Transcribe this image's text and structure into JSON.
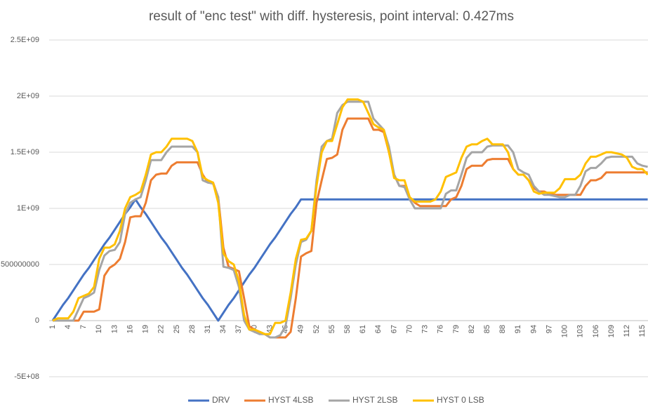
{
  "chart_data": {
    "type": "line",
    "title": "result of \"enc test\" with diff. hysteresis, point interval: 0.427ms",
    "categories": [
      "1",
      null,
      null,
      "4",
      null,
      null,
      "7",
      null,
      null,
      "10",
      null,
      null,
      "13",
      null,
      null,
      "16",
      null,
      null,
      "19",
      null,
      null,
      "22",
      null,
      null,
      "25",
      null,
      null,
      "28",
      null,
      null,
      "31",
      null,
      null,
      "34",
      null,
      null,
      "37",
      null,
      null,
      "40",
      null,
      null,
      "43",
      null,
      null,
      "46",
      null,
      null,
      "49",
      null,
      null,
      "52",
      null,
      null,
      "55",
      null,
      null,
      "58",
      null,
      null,
      "61",
      null,
      null,
      "64",
      null,
      null,
      "67",
      null,
      null,
      "70",
      null,
      null,
      "73",
      null,
      null,
      "76",
      null,
      null,
      "79",
      null,
      null,
      "82",
      null,
      null,
      "85",
      null,
      null,
      "88",
      null,
      null,
      "91",
      null,
      null,
      "94",
      null,
      null,
      "97",
      null,
      null,
      "100",
      null,
      null,
      "103",
      null,
      null,
      "106",
      null,
      null,
      "109",
      null,
      null,
      "112",
      null,
      null,
      "115",
      null
    ],
    "ylim": [
      -500000000.0,
      2500000000.0
    ],
    "yticks": [
      {
        "value": -500000000.0,
        "label": "-5E+08"
      },
      0,
      500000000,
      {
        "value": 1000000000.0,
        "label": "1E+09"
      },
      {
        "value": 1500000000.0,
        "label": "1.5E+09"
      },
      {
        "value": 2000000000.0,
        "label": "2E+09"
      },
      {
        "value": 2500000000.0,
        "label": "2.5E+09"
      }
    ],
    "grid": true,
    "legend": "bottom",
    "series": [
      {
        "name": "DRV",
        "color": "#4472c4",
        "values": [
          0,
          70000000.0,
          140000000.0,
          200000000.0,
          270000000.0,
          340000000.0,
          410000000.0,
          470000000.0,
          540000000.0,
          610000000.0,
          680000000.0,
          740000000.0,
          810000000.0,
          880000000.0,
          950000000.0,
          1010000000.0,
          1080000000.0,
          1010000000.0,
          950000000.0,
          880000000.0,
          810000000.0,
          740000000.0,
          680000000.0,
          610000000.0,
          540000000.0,
          470000000.0,
          410000000.0,
          340000000.0,
          270000000.0,
          200000000.0,
          140000000.0,
          70000000.0,
          0,
          70000000.0,
          140000000.0,
          200000000.0,
          270000000.0,
          340000000.0,
          410000000.0,
          470000000.0,
          540000000.0,
          610000000.0,
          680000000.0,
          740000000.0,
          810000000.0,
          880000000.0,
          950000000.0,
          1010000000.0,
          1080000000.0,
          1080000000.0,
          1080000000.0,
          1080000000.0,
          1080000000.0,
          1080000000.0,
          1080000000.0,
          1080000000.0,
          1080000000.0,
          1080000000.0,
          1080000000.0,
          1080000000.0,
          1080000000.0,
          1080000000.0,
          1080000000.0,
          1080000000.0,
          1080000000.0,
          1080000000.0,
          1080000000.0,
          1080000000.0,
          1080000000.0,
          1080000000.0,
          1080000000.0,
          1080000000.0,
          1080000000.0,
          1080000000.0,
          1080000000.0,
          1080000000.0,
          1080000000.0,
          1080000000.0,
          1080000000.0,
          1080000000.0,
          1080000000.0,
          1080000000.0,
          1080000000.0,
          1080000000.0,
          1080000000.0,
          1080000000.0,
          1080000000.0,
          1080000000.0,
          1080000000.0,
          1080000000.0,
          1080000000.0,
          1080000000.0,
          1080000000.0,
          1080000000.0,
          1080000000.0,
          1080000000.0,
          1080000000.0,
          1080000000.0,
          1080000000.0,
          1080000000.0,
          1080000000.0,
          1080000000.0,
          1080000000.0,
          1080000000.0,
          1080000000.0,
          1080000000.0,
          1080000000.0,
          1080000000.0,
          1080000000.0,
          1080000000.0,
          1080000000.0,
          1080000000.0,
          1080000000.0,
          1080000000.0,
          1080000000.0,
          1080000000.0
        ]
      },
      {
        "name": "HYST 4LSB",
        "color": "#ed7d31",
        "values": [
          0,
          0,
          0,
          0,
          0,
          0,
          80000000.0,
          80000000.0,
          80000000.0,
          100000000.0,
          400000000.0,
          470000000.0,
          500000000.0,
          550000000.0,
          700000000.0,
          920000000.0,
          930000000.0,
          930000000.0,
          1050000000.0,
          1250000000.0,
          1300000000.0,
          1310000000.0,
          1310000000.0,
          1380000000.0,
          1410000000.0,
          1410000000.0,
          1410000000.0,
          1410000000.0,
          1410000000.0,
          1300000000.0,
          1230000000.0,
          1230000000.0,
          1100000000.0,
          650000000.0,
          480000000.0,
          460000000.0,
          440000000.0,
          200000000.0,
          -50000000.0,
          -80000000.0,
          -100000000.0,
          -120000000.0,
          -150000000.0,
          -150000000.0,
          -150000000.0,
          -150000000.0,
          -100000000.0,
          200000000.0,
          570000000.0,
          600000000.0,
          620000000.0,
          1050000000.0,
          1250000000.0,
          1440000000.0,
          1450000000.0,
          1480000000.0,
          1700000000.0,
          1800000000.0,
          1800000000.0,
          1800000000.0,
          1800000000.0,
          1800000000.0,
          1700000000.0,
          1700000000.0,
          1680000000.0,
          1500000000.0,
          1300000000.0,
          1200000000.0,
          1200000000.0,
          1100000000.0,
          1050000000.0,
          1020000000.0,
          1020000000.0,
          1020000000.0,
          1020000000.0,
          1020000000.0,
          1020000000.0,
          1080000000.0,
          1100000000.0,
          1200000000.0,
          1350000000.0,
          1380000000.0,
          1380000000.0,
          1380000000.0,
          1430000000.0,
          1440000000.0,
          1440000000.0,
          1440000000.0,
          1440000000.0,
          1350000000.0,
          1300000000.0,
          1300000000.0,
          1250000000.0,
          1180000000.0,
          1150000000.0,
          1150000000.0,
          1130000000.0,
          1120000000.0,
          1120000000.0,
          1120000000.0,
          1120000000.0,
          1120000000.0,
          1120000000.0,
          1200000000.0,
          1250000000.0,
          1250000000.0,
          1270000000.0,
          1320000000.0,
          1320000000.0,
          1320000000.0,
          1320000000.0,
          1320000000.0,
          1320000000.0,
          1320000000.0,
          1320000000.0,
          1320000000.0
        ]
      },
      {
        "name": "HYST 2LSB",
        "color": "#a5a5a5",
        "values": [
          0,
          0,
          0,
          0,
          0,
          100000000.0,
          200000000.0,
          220000000.0,
          250000000.0,
          450000000.0,
          580000000.0,
          620000000.0,
          630000000.0,
          700000000.0,
          950000000.0,
          1050000000.0,
          1080000000.0,
          1100000000.0,
          1250000000.0,
          1430000000.0,
          1430000000.0,
          1430000000.0,
          1500000000.0,
          1550000000.0,
          1550000000.0,
          1550000000.0,
          1550000000.0,
          1550000000.0,
          1500000000.0,
          1250000000.0,
          1230000000.0,
          1220000000.0,
          1100000000.0,
          480000000.0,
          470000000.0,
          450000000.0,
          300000000.0,
          0,
          -80000000.0,
          -100000000.0,
          -120000000.0,
          -120000000.0,
          -150000000.0,
          -150000000.0,
          -130000000.0,
          -50000000.0,
          200000000.0,
          500000000.0,
          700000000.0,
          720000000.0,
          800000000.0,
          1250000000.0,
          1550000000.0,
          1600000000.0,
          1620000000.0,
          1850000000.0,
          1920000000.0,
          1950000000.0,
          1950000000.0,
          1950000000.0,
          1950000000.0,
          1950000000.0,
          1800000000.0,
          1750000000.0,
          1700000000.0,
          1550000000.0,
          1300000000.0,
          1200000000.0,
          1190000000.0,
          1080000000.0,
          1000000000.0,
          1000000000.0,
          1000000000.0,
          1000000000.0,
          1000000000.0,
          1000000000.0,
          1130000000.0,
          1160000000.0,
          1160000000.0,
          1300000000.0,
          1450000000.0,
          1500000000.0,
          1500000000.0,
          1500000000.0,
          1550000000.0,
          1560000000.0,
          1560000000.0,
          1560000000.0,
          1560000000.0,
          1500000000.0,
          1350000000.0,
          1320000000.0,
          1300000000.0,
          1200000000.0,
          1150000000.0,
          1120000000.0,
          1120000000.0,
          1110000000.0,
          1100000000.0,
          1100000000.0,
          1120000000.0,
          1120000000.0,
          1200000000.0,
          1330000000.0,
          1360000000.0,
          1360000000.0,
          1400000000.0,
          1450000000.0,
          1460000000.0,
          1460000000.0,
          1460000000.0,
          1460000000.0,
          1460000000.0,
          1400000000.0,
          1380000000.0,
          1370000000.0
        ]
      },
      {
        "name": "HYST 0 LSB",
        "color": "#ffc000",
        "values": [
          0,
          20000000.0,
          20000000.0,
          20000000.0,
          80000000.0,
          200000000.0,
          220000000.0,
          240000000.0,
          300000000.0,
          550000000.0,
          650000000.0,
          650000000.0,
          680000000.0,
          800000000.0,
          1000000000.0,
          1100000000.0,
          1120000000.0,
          1150000000.0,
          1300000000.0,
          1480000000.0,
          1500000000.0,
          1500000000.0,
          1550000000.0,
          1620000000.0,
          1620000000.0,
          1620000000.0,
          1620000000.0,
          1600000000.0,
          1500000000.0,
          1280000000.0,
          1250000000.0,
          1230000000.0,
          1050000000.0,
          600000000.0,
          530000000.0,
          500000000.0,
          350000000.0,
          50000000.0,
          -80000000.0,
          -80000000.0,
          -100000000.0,
          -120000000.0,
          -120000000.0,
          -20000000.0,
          -20000000.0,
          0,
          250000000.0,
          550000000.0,
          720000000.0,
          730000000.0,
          800000000.0,
          1200000000.0,
          1500000000.0,
          1600000000.0,
          1600000000.0,
          1750000000.0,
          1900000000.0,
          1970000000.0,
          1970000000.0,
          1970000000.0,
          1950000000.0,
          1850000000.0,
          1750000000.0,
          1720000000.0,
          1700000000.0,
          1500000000.0,
          1270000000.0,
          1250000000.0,
          1250000000.0,
          1100000000.0,
          1060000000.0,
          1060000000.0,
          1060000000.0,
          1060000000.0,
          1080000000.0,
          1150000000.0,
          1280000000.0,
          1300000000.0,
          1320000000.0,
          1450000000.0,
          1550000000.0,
          1570000000.0,
          1570000000.0,
          1600000000.0,
          1620000000.0,
          1570000000.0,
          1570000000.0,
          1570000000.0,
          1500000000.0,
          1350000000.0,
          1300000000.0,
          1300000000.0,
          1250000000.0,
          1150000000.0,
          1130000000.0,
          1140000000.0,
          1140000000.0,
          1140000000.0,
          1180000000.0,
          1260000000.0,
          1260000000.0,
          1260000000.0,
          1300000000.0,
          1400000000.0,
          1460000000.0,
          1460000000.0,
          1480000000.0,
          1500000000.0,
          1500000000.0,
          1490000000.0,
          1480000000.0,
          1450000000.0,
          1370000000.0,
          1350000000.0,
          1350000000.0,
          1300000000.0
        ]
      }
    ]
  }
}
